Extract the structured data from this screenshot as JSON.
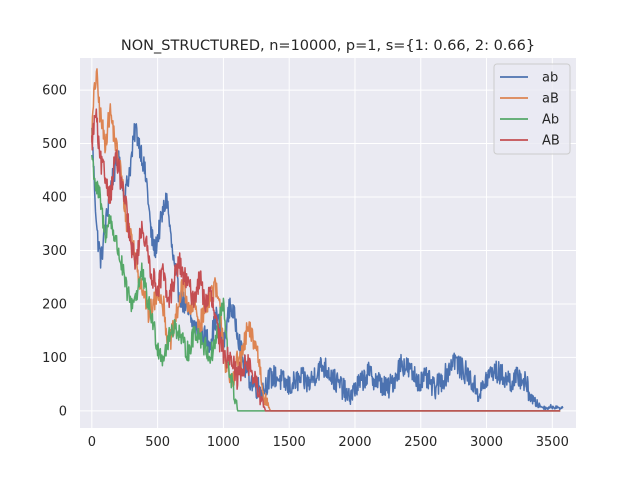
{
  "chart_data": {
    "type": "line",
    "title": "NON_STRUCTURED, n=10000, p=1, s={1: 0.66, 2: 0.66}",
    "xlabel": "",
    "ylabel": "",
    "xlim": [
      -90,
      3680
    ],
    "ylim": [
      -32,
      660
    ],
    "xticks": [
      0,
      500,
      1000,
      1500,
      2000,
      2500,
      3000,
      3500
    ],
    "yticks": [
      0,
      100,
      200,
      300,
      400,
      500,
      600
    ],
    "grid": true,
    "legend_position": "top-right",
    "colors": {
      "background": "#eaeaf2",
      "grid": "#ffffff",
      "text": "#262626"
    },
    "series": [
      {
        "name": "ab",
        "color": "#4c72b0",
        "noise": 22,
        "points": [
          [
            0,
            520
          ],
          [
            40,
            330
          ],
          [
            70,
            280
          ],
          [
            100,
            340
          ],
          [
            150,
            430
          ],
          [
            200,
            470
          ],
          [
            250,
            400
          ],
          [
            300,
            470
          ],
          [
            330,
            530
          ],
          [
            380,
            480
          ],
          [
            420,
            420
          ],
          [
            450,
            330
          ],
          [
            480,
            300
          ],
          [
            530,
            360
          ],
          [
            570,
            400
          ],
          [
            610,
            300
          ],
          [
            650,
            230
          ],
          [
            700,
            200
          ],
          [
            750,
            170
          ],
          [
            800,
            150
          ],
          [
            850,
            140
          ],
          [
            900,
            130
          ],
          [
            950,
            180
          ],
          [
            1000,
            120
          ],
          [
            1050,
            200
          ],
          [
            1100,
            160
          ],
          [
            1150,
            90
          ],
          [
            1200,
            60
          ],
          [
            1250,
            45
          ],
          [
            1300,
            40
          ],
          [
            1350,
            60
          ],
          [
            1400,
            65
          ],
          [
            1450,
            55
          ],
          [
            1500,
            45
          ],
          [
            1550,
            55
          ],
          [
            1600,
            60
          ],
          [
            1650,
            50
          ],
          [
            1700,
            70
          ],
          [
            1750,
            85
          ],
          [
            1800,
            75
          ],
          [
            1850,
            55
          ],
          [
            1900,
            45
          ],
          [
            1950,
            25
          ],
          [
            2000,
            40
          ],
          [
            2050,
            55
          ],
          [
            2100,
            70
          ],
          [
            2150,
            60
          ],
          [
            2200,
            50
          ],
          [
            2250,
            40
          ],
          [
            2300,
            60
          ],
          [
            2350,
            90
          ],
          [
            2400,
            80
          ],
          [
            2450,
            65
          ],
          [
            2500,
            55
          ],
          [
            2550,
            60
          ],
          [
            2600,
            40
          ],
          [
            2650,
            55
          ],
          [
            2700,
            70
          ],
          [
            2750,
            100
          ],
          [
            2800,
            80
          ],
          [
            2850,
            70
          ],
          [
            2900,
            50
          ],
          [
            2950,
            30
          ],
          [
            3000,
            60
          ],
          [
            3050,
            75
          ],
          [
            3100,
            70
          ],
          [
            3150,
            60
          ],
          [
            3200,
            55
          ],
          [
            3250,
            65
          ],
          [
            3300,
            50
          ],
          [
            3350,
            20
          ],
          [
            3400,
            10
          ],
          [
            3450,
            5
          ],
          [
            3500,
            8
          ],
          [
            3580,
            5
          ]
        ]
      },
      {
        "name": "aB",
        "color": "#dd8452",
        "noise": 22,
        "points": [
          [
            0,
            520
          ],
          [
            20,
            600
          ],
          [
            35,
            630
          ],
          [
            60,
            560
          ],
          [
            100,
            500
          ],
          [
            140,
            560
          ],
          [
            180,
            500
          ],
          [
            220,
            450
          ],
          [
            260,
            360
          ],
          [
            300,
            330
          ],
          [
            350,
            260
          ],
          [
            400,
            220
          ],
          [
            430,
            180
          ],
          [
            470,
            200
          ],
          [
            510,
            230
          ],
          [
            550,
            190
          ],
          [
            580,
            120
          ],
          [
            620,
            150
          ],
          [
            660,
            200
          ],
          [
            700,
            240
          ],
          [
            740,
            180
          ],
          [
            780,
            200
          ],
          [
            820,
            160
          ],
          [
            860,
            190
          ],
          [
            900,
            220
          ],
          [
            940,
            230
          ],
          [
            980,
            180
          ],
          [
            1020,
            80
          ],
          [
            1060,
            50
          ],
          [
            1100,
            90
          ],
          [
            1140,
            100
          ],
          [
            1180,
            150
          ],
          [
            1220,
            140
          ],
          [
            1260,
            110
          ],
          [
            1290,
            60
          ],
          [
            1310,
            30
          ],
          [
            1340,
            10
          ],
          [
            1360,
            0
          ],
          [
            3560,
            0
          ]
        ]
      },
      {
        "name": "Ab",
        "color": "#55a868",
        "noise": 20,
        "points": [
          [
            0,
            480
          ],
          [
            30,
            420
          ],
          [
            60,
            400
          ],
          [
            100,
            330
          ],
          [
            140,
            360
          ],
          [
            180,
            320
          ],
          [
            220,
            280
          ],
          [
            260,
            230
          ],
          [
            300,
            200
          ],
          [
            340,
            220
          ],
          [
            380,
            260
          ],
          [
            420,
            210
          ],
          [
            460,
            170
          ],
          [
            500,
            120
          ],
          [
            540,
            100
          ],
          [
            580,
            130
          ],
          [
            620,
            160
          ],
          [
            660,
            150
          ],
          [
            700,
            120
          ],
          [
            740,
            110
          ],
          [
            780,
            150
          ],
          [
            820,
            140
          ],
          [
            860,
            120
          ],
          [
            900,
            100
          ],
          [
            940,
            130
          ],
          [
            980,
            180
          ],
          [
            1000,
            200
          ],
          [
            1020,
            140
          ],
          [
            1040,
            80
          ],
          [
            1060,
            60
          ],
          [
            1080,
            30
          ],
          [
            1100,
            15
          ],
          [
            1110,
            0
          ],
          [
            3560,
            0
          ]
        ]
      },
      {
        "name": "AB",
        "color": "#c44e52",
        "noise": 22,
        "points": [
          [
            0,
            500
          ],
          [
            30,
            560
          ],
          [
            60,
            470
          ],
          [
            100,
            440
          ],
          [
            140,
            400
          ],
          [
            180,
            480
          ],
          [
            220,
            430
          ],
          [
            260,
            380
          ],
          [
            300,
            300
          ],
          [
            340,
            280
          ],
          [
            380,
            350
          ],
          [
            420,
            300
          ],
          [
            460,
            250
          ],
          [
            500,
            230
          ],
          [
            540,
            260
          ],
          [
            580,
            200
          ],
          [
            620,
            240
          ],
          [
            660,
            280
          ],
          [
            700,
            250
          ],
          [
            740,
            230
          ],
          [
            780,
            210
          ],
          [
            820,
            250
          ],
          [
            860,
            200
          ],
          [
            900,
            220
          ],
          [
            940,
            170
          ],
          [
            980,
            120
          ],
          [
            1020,
            100
          ],
          [
            1060,
            110
          ],
          [
            1100,
            60
          ],
          [
            1140,
            80
          ],
          [
            1180,
            90
          ],
          [
            1220,
            70
          ],
          [
            1260,
            40
          ],
          [
            1290,
            20
          ],
          [
            1320,
            0
          ],
          [
            3560,
            0
          ]
        ]
      }
    ]
  }
}
